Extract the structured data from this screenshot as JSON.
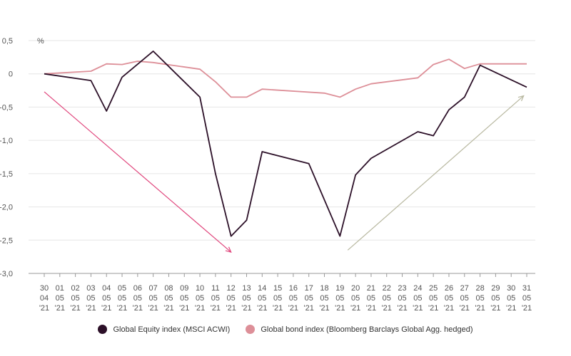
{
  "chart_data": {
    "type": "line",
    "title": "",
    "unit_label": "%",
    "ylim": [
      -3.0,
      0.5
    ],
    "yticks": [
      {
        "value": 0.5,
        "label": "0,5"
      },
      {
        "value": 0,
        "label": "0"
      },
      {
        "value": -0.5,
        "label": "-0,5"
      },
      {
        "value": -1.0,
        "label": "-1,0"
      },
      {
        "value": -1.5,
        "label": "-1,5"
      },
      {
        "value": -2.0,
        "label": "-2,0"
      },
      {
        "value": -2.5,
        "label": "-2,5"
      },
      {
        "value": -3.0,
        "label": "-3,0"
      }
    ],
    "grid": true,
    "categories": [
      [
        "30",
        "04",
        "'21"
      ],
      [
        "01",
        "05",
        "'21"
      ],
      [
        "02",
        "05",
        "'21"
      ],
      [
        "03",
        "05",
        "'21"
      ],
      [
        "04",
        "05",
        "'21"
      ],
      [
        "05",
        "05",
        "'21"
      ],
      [
        "06",
        "05",
        "'21"
      ],
      [
        "07",
        "05",
        "'21"
      ],
      [
        "08",
        "05",
        "'21"
      ],
      [
        "09",
        "05",
        "'21"
      ],
      [
        "10",
        "05",
        "'21"
      ],
      [
        "11",
        "05",
        "'21"
      ],
      [
        "12",
        "05",
        "'21"
      ],
      [
        "13",
        "05",
        "'21"
      ],
      [
        "14",
        "05",
        "'21"
      ],
      [
        "15",
        "05",
        "'21"
      ],
      [
        "16",
        "05",
        "'21"
      ],
      [
        "17",
        "05",
        "'21"
      ],
      [
        "18",
        "05",
        "'21"
      ],
      [
        "19",
        "05",
        "'21"
      ],
      [
        "20",
        "05",
        "'21"
      ],
      [
        "21",
        "05",
        "'21"
      ],
      [
        "22",
        "05",
        "'21"
      ],
      [
        "23",
        "05",
        "'21"
      ],
      [
        "24",
        "05",
        "'21"
      ],
      [
        "25",
        "05",
        "'21"
      ],
      [
        "26",
        "05",
        "'21"
      ],
      [
        "27",
        "05",
        "'21"
      ],
      [
        "28",
        "05",
        "'21"
      ],
      [
        "29",
        "05",
        "'21"
      ],
      [
        "30",
        "05",
        "'21"
      ],
      [
        "31",
        "05",
        "'21"
      ]
    ],
    "series": [
      {
        "name": "Global Equity index (MSCI ACWI)",
        "color": "#2c1028",
        "x": [
          0,
          3,
          4,
          5,
          7,
          10,
          11,
          12,
          13,
          14,
          17,
          19,
          20,
          21,
          24,
          25,
          26,
          27,
          28,
          31
        ],
        "values": [
          0,
          -0.1,
          -0.56,
          -0.05,
          0.34,
          -0.35,
          -1.5,
          -2.44,
          -2.2,
          -1.17,
          -1.35,
          -2.44,
          -1.52,
          -1.27,
          -0.87,
          -0.93,
          -0.54,
          -0.35,
          0.13,
          -0.2
        ]
      },
      {
        "name": "Global bond index (Bloomberg Barclays Global Agg. hedged)",
        "color": "#dd8f98",
        "x": [
          0,
          3,
          4,
          5,
          6,
          7,
          10,
          11,
          12,
          13,
          14,
          18,
          19,
          20,
          21,
          24,
          25,
          26,
          27,
          28,
          31
        ],
        "values": [
          0,
          0.04,
          0.15,
          0.14,
          0.19,
          0.17,
          0.07,
          -0.12,
          -0.35,
          -0.35,
          -0.23,
          -0.29,
          -0.35,
          -0.23,
          -0.15,
          -0.06,
          0.14,
          0.22,
          0.08,
          0.15,
          0.15
        ]
      }
    ],
    "annotations": [
      {
        "type": "arrow",
        "color": "#e0457c",
        "from": {
          "x": 0,
          "y": -0.27
        },
        "to": {
          "x": 12,
          "y": -2.68
        }
      },
      {
        "type": "arrow",
        "color": "#b8b8a0",
        "from": {
          "x": 19.5,
          "y": -2.65
        },
        "to": {
          "x": 30.8,
          "y": -0.33
        }
      }
    ],
    "legend_position": "bottom-center"
  }
}
